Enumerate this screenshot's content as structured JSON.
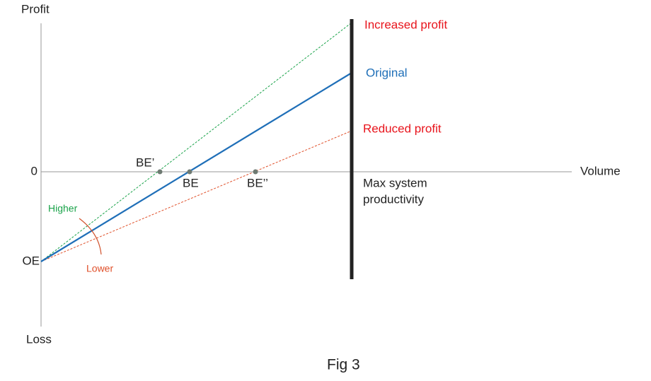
{
  "axes": {
    "y_top": "Profit",
    "y_zero": "0",
    "y_origin": "OE",
    "y_bottom": "Loss",
    "x": "Volume"
  },
  "lines": [
    {
      "label": "Increased profit"
    },
    {
      "label": "Original"
    },
    {
      "label": "Reduced profit"
    }
  ],
  "angle_labels": {
    "upper": "Higher",
    "lower": "Lower"
  },
  "points": [
    {
      "label": "BE’"
    },
    {
      "label": "BE"
    },
    {
      "label": "BE’’"
    }
  ],
  "limit": {
    "label_line1": "Max system",
    "label_line2": "productivity"
  },
  "caption": "Fig 3"
}
